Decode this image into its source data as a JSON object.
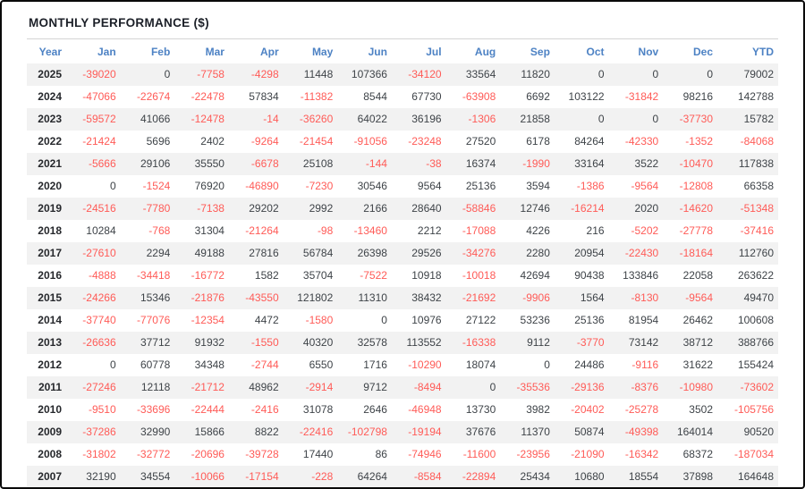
{
  "title": "MONTHLY PERFORMANCE ($)",
  "colors": {
    "header_blue": "#4d82c4",
    "negative_red": "#ff5b57",
    "positive_dark": "#3e4348",
    "stripe_gray": "#f2f2f2",
    "title_dark": "#1c2028"
  },
  "chart_data": {
    "type": "table",
    "title": "MONTHLY PERFORMANCE ($)",
    "columns": [
      "Year",
      "Jan",
      "Feb",
      "Mar",
      "Apr",
      "May",
      "Jun",
      "Jul",
      "Aug",
      "Sep",
      "Oct",
      "Nov",
      "Dec",
      "YTD"
    ],
    "rows": [
      {
        "year": "2025",
        "values": [
          -39020,
          0,
          -7758,
          -4298,
          11448,
          107366,
          -34120,
          33564,
          11820,
          0,
          0,
          0,
          79002
        ]
      },
      {
        "year": "2024",
        "values": [
          -47066,
          -22674,
          -22478,
          57834,
          -11382,
          8544,
          67730,
          -63908,
          6692,
          103122,
          -31842,
          98216,
          142788
        ]
      },
      {
        "year": "2023",
        "values": [
          -59572,
          41066,
          -12478,
          -14,
          -36260,
          64022,
          36196,
          -1306,
          21858,
          0,
          0,
          -37730,
          15782
        ]
      },
      {
        "year": "2022",
        "values": [
          -21424,
          5696,
          2402,
          -9264,
          -21454,
          -91056,
          -23248,
          27520,
          6178,
          84264,
          -42330,
          -1352,
          -84068
        ]
      },
      {
        "year": "2021",
        "values": [
          -5666,
          29106,
          35550,
          -6678,
          25108,
          -144,
          -38,
          16374,
          -1990,
          33164,
          3522,
          -10470,
          117838
        ]
      },
      {
        "year": "2020",
        "values": [
          0,
          -1524,
          76920,
          -46890,
          -7230,
          30546,
          9564,
          25136,
          3594,
          -1386,
          -9564,
          -12808,
          66358
        ]
      },
      {
        "year": "2019",
        "values": [
          -24516,
          -7780,
          -7138,
          29202,
          2992,
          2166,
          28640,
          -58846,
          12746,
          -16214,
          2020,
          -14620,
          -51348
        ]
      },
      {
        "year": "2018",
        "values": [
          10284,
          -768,
          31304,
          -21264,
          -98,
          -13460,
          2212,
          -17088,
          4226,
          216,
          -5202,
          -27778,
          -37416
        ]
      },
      {
        "year": "2017",
        "values": [
          -27610,
          2294,
          49188,
          27816,
          56784,
          26398,
          29526,
          -34276,
          2280,
          20954,
          -22430,
          -18164,
          112760
        ]
      },
      {
        "year": "2016",
        "values": [
          -4888,
          -34418,
          -16772,
          1582,
          35704,
          -7522,
          10918,
          -10018,
          42694,
          90438,
          133846,
          22058,
          263622
        ]
      },
      {
        "year": "2015",
        "values": [
          -24266,
          15346,
          -21876,
          -43550,
          121802,
          11310,
          38432,
          -21692,
          -9906,
          1564,
          -8130,
          -9564,
          49470
        ]
      },
      {
        "year": "2014",
        "values": [
          -37740,
          -77076,
          -12354,
          4472,
          -1580,
          0,
          10976,
          27122,
          53236,
          25136,
          81954,
          26462,
          100608
        ]
      },
      {
        "year": "2013",
        "values": [
          -26636,
          37712,
          91932,
          -1550,
          40320,
          32578,
          113552,
          -16338,
          9112,
          -3770,
          73142,
          38712,
          388766
        ]
      },
      {
        "year": "2012",
        "values": [
          0,
          60778,
          34348,
          -2744,
          6550,
          1716,
          -10290,
          18074,
          0,
          24486,
          -9116,
          31622,
          155424
        ]
      },
      {
        "year": "2011",
        "values": [
          -27246,
          12118,
          -21712,
          48962,
          -2914,
          9712,
          -8494,
          0,
          -35536,
          -29136,
          -8376,
          -10980,
          -73602
        ]
      },
      {
        "year": "2010",
        "values": [
          -9510,
          -33696,
          -22444,
          -2416,
          31078,
          2646,
          -46948,
          13730,
          3982,
          -20402,
          -25278,
          3502,
          -105756
        ]
      },
      {
        "year": "2009",
        "values": [
          -37286,
          32990,
          15866,
          8822,
          -22416,
          -102798,
          -19194,
          37676,
          11370,
          50874,
          -49398,
          164014,
          90520
        ]
      },
      {
        "year": "2008",
        "values": [
          -31802,
          -32772,
          -20696,
          -39728,
          17440,
          86,
          -74946,
          -11600,
          -23956,
          -21090,
          -16342,
          68372,
          -187034
        ]
      },
      {
        "year": "2007",
        "values": [
          32190,
          34554,
          -10066,
          -17154,
          -228,
          64264,
          -8584,
          -22894,
          25434,
          10680,
          18554,
          37898,
          164648
        ]
      }
    ]
  }
}
